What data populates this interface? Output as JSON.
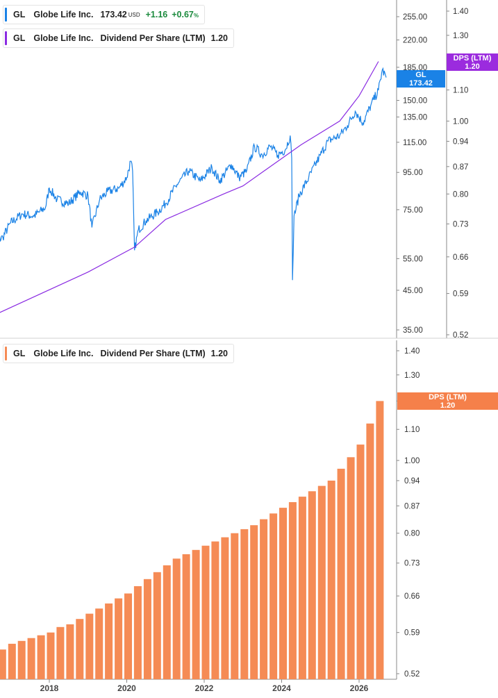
{
  "colors": {
    "price": "#1a82e6",
    "dps_line": "#8a2be2",
    "dps_bar": "#f58b55",
    "dps_tag": "#9b2bde",
    "bar_tag": "#f5804a"
  },
  "legend_price": {
    "symbol": "GL",
    "name": "Globe Life Inc.",
    "value": "173.42",
    "currency": "USD",
    "change": "+1.16",
    "change_pct": "+0.67",
    "pct_sign": "%"
  },
  "legend_dps_top": {
    "symbol": "GL",
    "name": "Globe Life Inc.",
    "metric": "Dividend Per Share (LTM)",
    "value": "1.20"
  },
  "legend_dps_bottom": {
    "symbol": "GL",
    "name": "Globe Life Inc.",
    "metric": "Dividend Per Share (LTM)",
    "value": "1.20"
  },
  "tags": {
    "price": {
      "label": "GL",
      "value": "173.42"
    },
    "dps_top": {
      "label": "DPS (LTM)",
      "value": "1.20"
    },
    "dps_bottom": {
      "label": "DPS (LTM)",
      "value": "1.20"
    }
  },
  "chart_data": [
    {
      "type": "line",
      "scale": "log",
      "series": [
        {
          "name": "GL",
          "x": [
            2016.5,
            2016.8,
            2017.0,
            2017.3,
            2017.6,
            2017.9,
            2018.0,
            2018.2,
            2018.5,
            2018.8,
            2019.0,
            2019.1,
            2019.3,
            2019.5,
            2019.8,
            2020.0,
            2020.1,
            2020.15,
            2020.2,
            2020.3,
            2020.5,
            2020.8,
            2021.0,
            2021.3,
            2021.6,
            2021.9,
            2022.2,
            2022.4,
            2022.7,
            2022.9,
            2023.1,
            2023.3,
            2023.5,
            2023.7,
            2023.9,
            2024.1,
            2024.22,
            2024.26,
            2024.28,
            2024.32,
            2024.45,
            2024.7,
            2025.0,
            2025.2,
            2025.5,
            2025.7,
            2025.9,
            2026.1,
            2026.3,
            2026.5,
            2026.6,
            2026.7
          ],
          "y": [
            60,
            63,
            69,
            73,
            72,
            76,
            86,
            80,
            78,
            84,
            82,
            67,
            80,
            84,
            86,
            92,
            102,
            96,
            58,
            66,
            70,
            74,
            78,
            88,
            96,
            90,
            98,
            90,
            100,
            92,
            96,
            112,
            106,
            112,
            106,
            110,
            120,
            104,
            48,
            72,
            82,
            92,
            106,
            116,
            120,
            128,
            140,
            130,
            145,
            160,
            182,
            173.42
          ]
        },
        {
          "name": "DPS (LTM)",
          "x": [
            2016.5,
            2019.0,
            2020.2,
            2021.0,
            2022.5,
            2023.0,
            2024.5,
            2025.5,
            2026.0,
            2026.5
          ],
          "y": [
            0.55,
            0.63,
            0.68,
            0.74,
            0.8,
            0.82,
            0.93,
            1.0,
            1.08,
            1.2
          ]
        }
      ],
      "y_left_ticks": [
        35,
        45,
        55,
        75,
        95,
        115,
        135,
        150,
        185,
        220,
        255
      ],
      "y_right_ticks": [
        0.52,
        0.59,
        0.66,
        0.73,
        0.8,
        0.87,
        0.94,
        1.0,
        1.1,
        1.3,
        1.4
      ],
      "ylim": [
        33,
        320
      ],
      "ylim_dps": [
        0.52,
        1.45
      ]
    },
    {
      "type": "bar",
      "scale": "log",
      "series": [
        {
          "name": "Dividend Per Share (LTM)",
          "x": [
            2016.5,
            2016.75,
            2017.0,
            2017.25,
            2017.5,
            2017.75,
            2018.0,
            2018.25,
            2018.5,
            2018.75,
            2019.0,
            2019.25,
            2019.5,
            2019.75,
            2020.0,
            2020.25,
            2020.5,
            2020.75,
            2021.0,
            2021.25,
            2021.5,
            2021.75,
            2022.0,
            2022.25,
            2022.5,
            2022.75,
            2023.0,
            2023.25,
            2023.5,
            2023.75,
            2024.0,
            2024.25,
            2024.5,
            2024.75,
            2025.0,
            2025.25,
            2025.5,
            2025.75,
            2026.0,
            2026.25,
            2026.5
          ],
          "values": [
            0.55,
            0.56,
            0.57,
            0.575,
            0.58,
            0.585,
            0.59,
            0.6,
            0.605,
            0.615,
            0.625,
            0.635,
            0.645,
            0.655,
            0.665,
            0.68,
            0.695,
            0.71,
            0.725,
            0.74,
            0.75,
            0.76,
            0.77,
            0.78,
            0.79,
            0.8,
            0.81,
            0.82,
            0.835,
            0.85,
            0.865,
            0.88,
            0.895,
            0.91,
            0.925,
            0.94,
            0.975,
            1.01,
            1.05,
            1.12,
            1.2
          ]
        }
      ],
      "x_ticks": [
        "2018",
        "2020",
        "2022",
        "2024",
        "2026"
      ],
      "y_ticks": [
        0.52,
        0.59,
        0.66,
        0.73,
        0.8,
        0.87,
        0.94,
        1.0,
        1.1,
        1.2,
        1.3,
        1.4
      ],
      "ylim": [
        0.52,
        1.45
      ]
    }
  ]
}
